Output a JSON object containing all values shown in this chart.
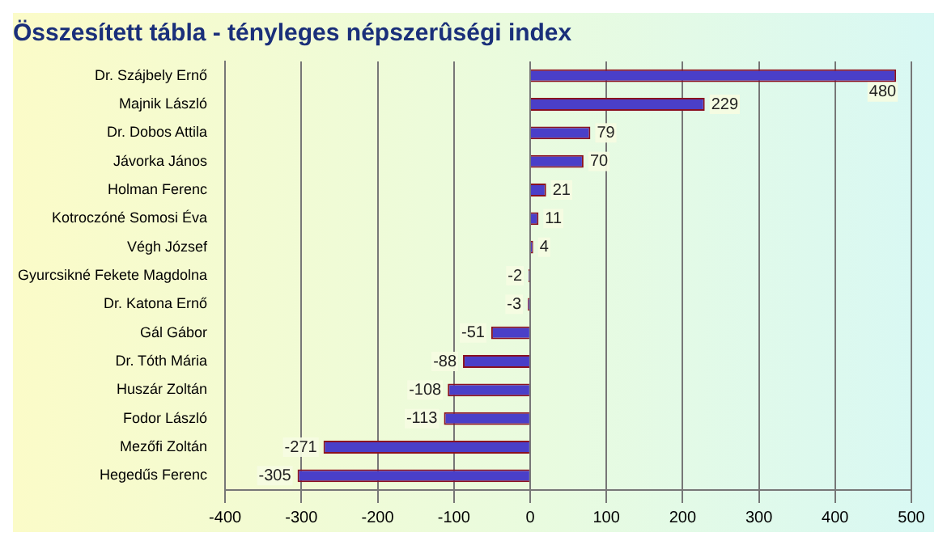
{
  "chart_data": {
    "type": "bar",
    "orientation": "horizontal",
    "title": "Összesített tábla - tényleges népszerûségi index",
    "categories": [
      "Dr. Szájbely Ernő",
      "Majnik László",
      "Dr. Dobos Attila",
      "Jávorka János",
      "Holman Ferenc",
      "Kotroczóné Somosi Éva",
      "Végh József",
      "Gyurcsikné Fekete Magdolna",
      "Dr. Katona Ernő",
      "Gál Gábor",
      "Dr. Tóth Mária",
      "Huszár Zoltán",
      "Fodor László",
      "Mezőfi Zoltán",
      "Hegedűs Ferenc"
    ],
    "values": [
      480,
      229,
      79,
      70,
      21,
      11,
      4,
      -2,
      -3,
      -51,
      -88,
      -108,
      -113,
      -271,
      -305
    ],
    "color": "#4a3fc8",
    "xlim": [
      -400,
      500
    ],
    "xticks": [
      -400,
      -300,
      -200,
      -100,
      0,
      100,
      200,
      300,
      400,
      500
    ],
    "grid": "x",
    "data_labels": true,
    "legend": false
  }
}
